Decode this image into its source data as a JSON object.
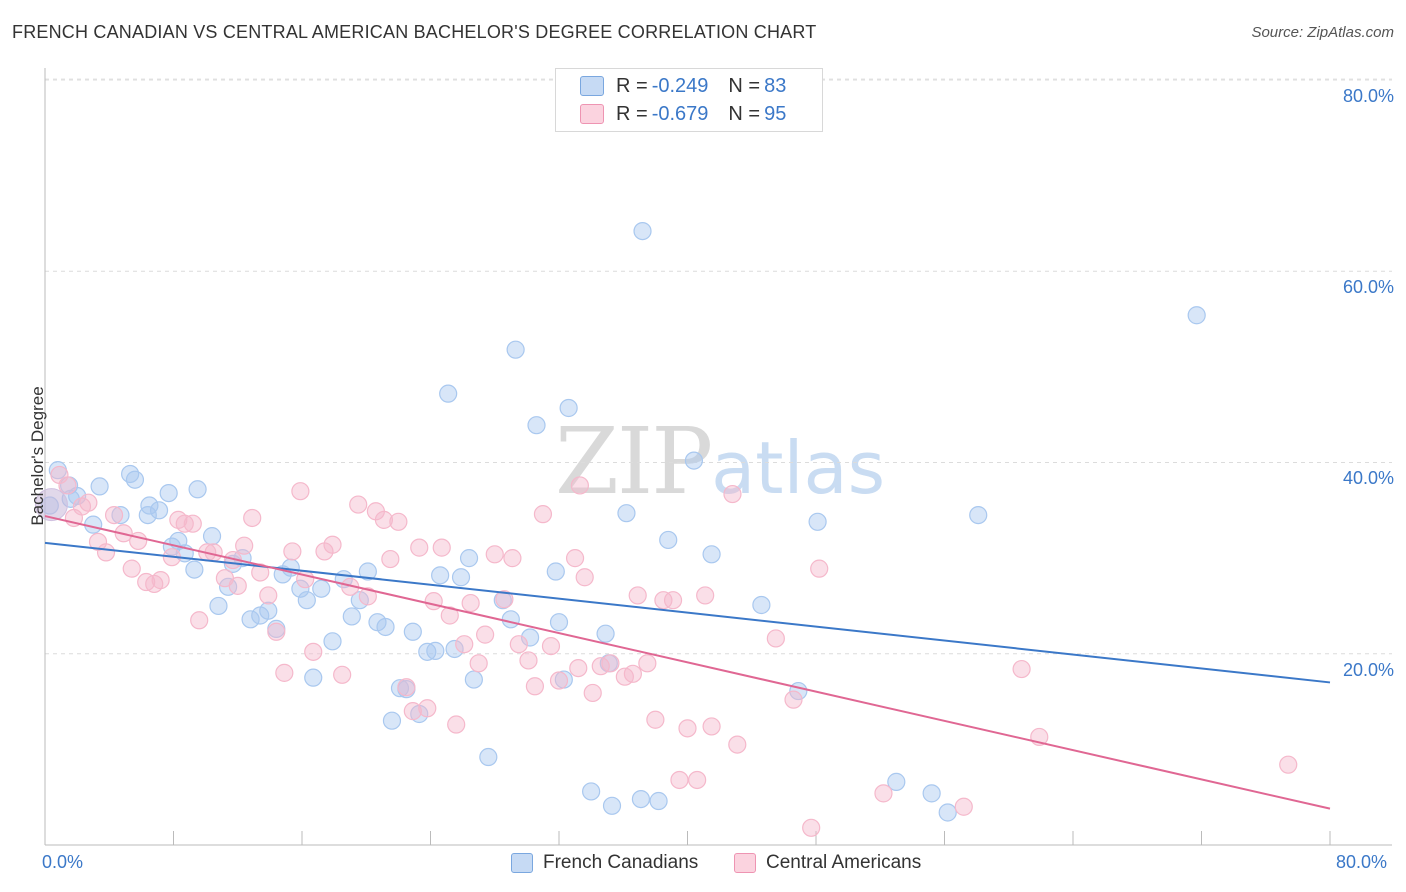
{
  "title": "FRENCH CANADIAN VS CENTRAL AMERICAN BACHELOR'S DEGREE CORRELATION CHART",
  "source": "Source: ZipAtlas.com",
  "watermark": {
    "zip": "ZIP",
    "atlas": "atlas"
  },
  "legend": {
    "rows": [
      {
        "r_label": "R = ",
        "r_value": "-0.249",
        "n_label": "N = ",
        "n_value": "83",
        "color": "#a9c8ef"
      },
      {
        "r_label": "R = ",
        "r_value": "-0.679",
        "n_label": "N = ",
        "n_value": "95",
        "color": "#f5b8cb"
      }
    ]
  },
  "bottom_legend": [
    "French Canadians",
    "Central Americans"
  ],
  "chart_data": {
    "type": "scatter",
    "title": "FRENCH CANADIAN VS CENTRAL AMERICAN BACHELOR'S DEGREE CORRELATION CHART",
    "xlabel": "",
    "ylabel": "Bachelor's Degree",
    "xlim": [
      0,
      80
    ],
    "ylim": [
      0,
      80
    ],
    "x_tick_labels": [
      "0.0%",
      "80.0%"
    ],
    "y_tick_labels": [
      "20.0%",
      "40.0%",
      "60.0%",
      "80.0%"
    ],
    "y_ticks": [
      20,
      40,
      60,
      80
    ],
    "x_minor_ticks": [
      8,
      16,
      24,
      32,
      40,
      48,
      56,
      64,
      72,
      80
    ],
    "series": [
      {
        "name": "French Canadians",
        "color": "#3b78c8",
        "fill": "#a9c8ef",
        "trend": {
          "x0": 0,
          "y0": 31.6,
          "x1": 80,
          "y1": 17.0
        },
        "points": [
          [
            0.8,
            39.2
          ],
          [
            1.6,
            36.2
          ],
          [
            1.5,
            37.6
          ],
          [
            3.4,
            37.5
          ],
          [
            3.0,
            33.5
          ],
          [
            2.0,
            36.5
          ],
          [
            5.3,
            38.8
          ],
          [
            5.6,
            38.2
          ],
          [
            4.7,
            34.5
          ],
          [
            6.4,
            34.5
          ],
          [
            6.5,
            35.5
          ],
          [
            7.7,
            36.8
          ],
          [
            7.1,
            35.0
          ],
          [
            8.3,
            31.8
          ],
          [
            8.7,
            30.5
          ],
          [
            9.5,
            37.2
          ],
          [
            10.4,
            32.3
          ],
          [
            9.3,
            28.8
          ],
          [
            10.8,
            25.0
          ],
          [
            11.4,
            27.0
          ],
          [
            11.7,
            29.4
          ],
          [
            12.3,
            30.0
          ],
          [
            12.8,
            23.6
          ],
          [
            13.4,
            24.0
          ],
          [
            13.9,
            24.5
          ],
          [
            14.4,
            22.6
          ],
          [
            14.8,
            28.3
          ],
          [
            15.3,
            29.0
          ],
          [
            15.9,
            26.8
          ],
          [
            16.3,
            25.6
          ],
          [
            16.7,
            17.5
          ],
          [
            17.2,
            26.8
          ],
          [
            17.9,
            21.3
          ],
          [
            18.6,
            27.8
          ],
          [
            19.1,
            23.9
          ],
          [
            19.6,
            25.6
          ],
          [
            20.1,
            28.6
          ],
          [
            20.7,
            23.3
          ],
          [
            21.2,
            22.8
          ],
          [
            21.6,
            13.0
          ],
          [
            22.1,
            16.4
          ],
          [
            22.5,
            16.3
          ],
          [
            22.9,
            22.3
          ],
          [
            23.3,
            13.7
          ],
          [
            23.8,
            20.2
          ],
          [
            24.3,
            20.3
          ],
          [
            24.6,
            28.2
          ],
          [
            25.1,
            47.2
          ],
          [
            25.5,
            20.5
          ],
          [
            25.9,
            28.0
          ],
          [
            26.4,
            30.0
          ],
          [
            26.7,
            17.3
          ],
          [
            27.6,
            9.2
          ],
          [
            28.5,
            25.6
          ],
          [
            29.0,
            23.6
          ],
          [
            29.3,
            51.8
          ],
          [
            30.2,
            21.7
          ],
          [
            30.6,
            43.9
          ],
          [
            31.8,
            28.6
          ],
          [
            32.0,
            23.3
          ],
          [
            32.3,
            17.3
          ],
          [
            32.6,
            45.7
          ],
          [
            34.0,
            5.6
          ],
          [
            34.9,
            22.1
          ],
          [
            35.1,
            19.0
          ],
          [
            35.3,
            4.1
          ],
          [
            36.2,
            34.7
          ],
          [
            37.1,
            4.8
          ],
          [
            37.2,
            64.2
          ],
          [
            38.2,
            4.6
          ],
          [
            38.8,
            31.9
          ],
          [
            40.4,
            40.2
          ],
          [
            41.5,
            30.4
          ],
          [
            44.6,
            25.1
          ],
          [
            46.9,
            16.1
          ],
          [
            48.1,
            33.8
          ],
          [
            53.0,
            6.6
          ],
          [
            55.2,
            5.4
          ],
          [
            56.2,
            3.4
          ],
          [
            58.1,
            34.5
          ],
          [
            71.7,
            55.4
          ],
          [
            0.3,
            35.5
          ],
          [
            7.9,
            31.2
          ]
        ]
      },
      {
        "name": "Central Americans",
        "color": "#e06793",
        "fill": "#f5b8cb",
        "trend": {
          "x0": 0,
          "y0": 34.4,
          "x1": 80,
          "y1": 3.8
        },
        "points": [
          [
            0.9,
            38.7
          ],
          [
            1.4,
            37.6
          ],
          [
            1.8,
            34.2
          ],
          [
            2.3,
            35.4
          ],
          [
            2.7,
            35.8
          ],
          [
            3.3,
            31.7
          ],
          [
            3.8,
            30.6
          ],
          [
            4.3,
            34.5
          ],
          [
            4.9,
            32.6
          ],
          [
            5.4,
            28.9
          ],
          [
            5.8,
            31.8
          ],
          [
            6.3,
            27.5
          ],
          [
            6.8,
            27.3
          ],
          [
            7.2,
            27.7
          ],
          [
            7.9,
            30.1
          ],
          [
            8.3,
            34.0
          ],
          [
            8.7,
            33.6
          ],
          [
            9.2,
            33.6
          ],
          [
            9.6,
            23.5
          ],
          [
            10.1,
            30.6
          ],
          [
            10.5,
            30.6
          ],
          [
            11.2,
            27.9
          ],
          [
            11.7,
            29.8
          ],
          [
            12.0,
            27.1
          ],
          [
            12.4,
            31.3
          ],
          [
            12.9,
            34.2
          ],
          [
            13.4,
            28.5
          ],
          [
            13.9,
            26.1
          ],
          [
            14.4,
            22.3
          ],
          [
            14.9,
            18.0
          ],
          [
            15.4,
            30.7
          ],
          [
            15.9,
            37.0
          ],
          [
            16.2,
            27.8
          ],
          [
            16.7,
            20.2
          ],
          [
            17.4,
            30.7
          ],
          [
            17.9,
            31.4
          ],
          [
            18.5,
            17.8
          ],
          [
            19.0,
            27.0
          ],
          [
            19.5,
            35.6
          ],
          [
            20.1,
            26.0
          ],
          [
            20.6,
            34.9
          ],
          [
            21.1,
            34.0
          ],
          [
            21.5,
            29.9
          ],
          [
            22.0,
            33.8
          ],
          [
            22.5,
            16.5
          ],
          [
            22.9,
            14.0
          ],
          [
            23.3,
            31.1
          ],
          [
            23.8,
            14.3
          ],
          [
            24.2,
            25.5
          ],
          [
            24.7,
            31.1
          ],
          [
            25.2,
            24.0
          ],
          [
            25.6,
            12.6
          ],
          [
            26.1,
            21.0
          ],
          [
            26.5,
            25.3
          ],
          [
            27.0,
            19.0
          ],
          [
            27.4,
            22.0
          ],
          [
            28.0,
            30.4
          ],
          [
            28.6,
            25.7
          ],
          [
            29.1,
            30.0
          ],
          [
            29.5,
            21.0
          ],
          [
            30.1,
            19.3
          ],
          [
            30.5,
            16.6
          ],
          [
            31.0,
            34.6
          ],
          [
            31.5,
            20.8
          ],
          [
            32.0,
            17.2
          ],
          [
            33.0,
            30.0
          ],
          [
            33.2,
            18.5
          ],
          [
            33.6,
            28.0
          ],
          [
            33.3,
            37.6
          ],
          [
            34.1,
            15.9
          ],
          [
            34.6,
            18.7
          ],
          [
            35.2,
            19.0
          ],
          [
            36.1,
            17.6
          ],
          [
            36.6,
            17.9
          ],
          [
            36.9,
            26.1
          ],
          [
            37.5,
            19.0
          ],
          [
            38.0,
            13.1
          ],
          [
            38.5,
            25.6
          ],
          [
            39.1,
            25.6
          ],
          [
            39.5,
            6.8
          ],
          [
            40.0,
            12.2
          ],
          [
            40.6,
            6.8
          ],
          [
            41.1,
            26.1
          ],
          [
            41.5,
            12.4
          ],
          [
            42.8,
            36.7
          ],
          [
            43.1,
            10.5
          ],
          [
            45.5,
            21.6
          ],
          [
            46.6,
            15.2
          ],
          [
            47.7,
            1.8
          ],
          [
            48.2,
            28.9
          ],
          [
            52.2,
            5.4
          ],
          [
            57.2,
            4.0
          ],
          [
            60.8,
            18.4
          ],
          [
            61.9,
            11.3
          ],
          [
            77.4,
            8.4
          ]
        ]
      }
    ]
  }
}
